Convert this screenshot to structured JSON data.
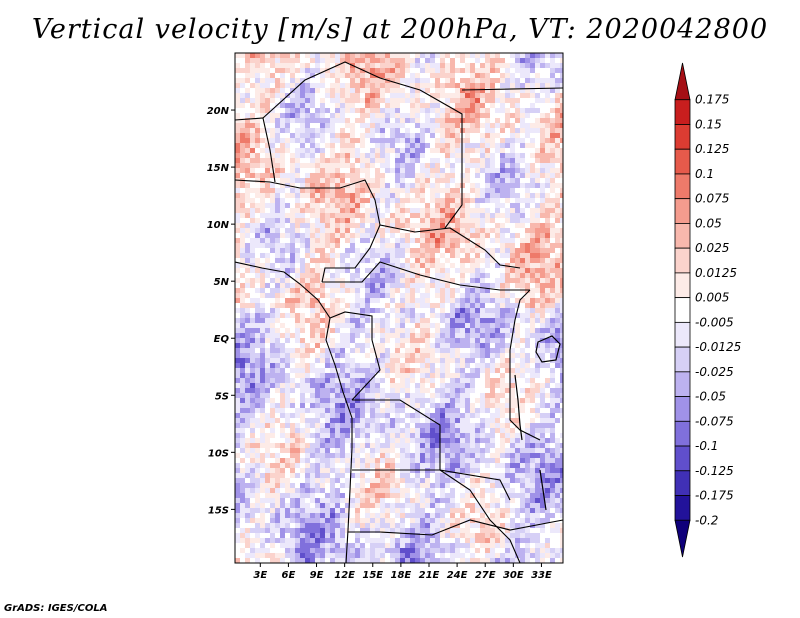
{
  "chart_data": {
    "type": "heatmap",
    "title": "Vertical velocity [m/s] at 200hPa, VT: 2020042800",
    "variable": "Vertical velocity",
    "units": "m/s",
    "pressure_level": "200hPa",
    "valid_time": "2020042800",
    "x_ticks": [
      "3E",
      "6E",
      "9E",
      "12E",
      "15E",
      "18E",
      "21E",
      "24E",
      "27E",
      "30E",
      "33E"
    ],
    "x_tick_values": [
      3,
      6,
      9,
      12,
      15,
      18,
      21,
      24,
      27,
      30,
      33
    ],
    "y_ticks": [
      "20N",
      "15N",
      "10N",
      "5N",
      "EQ",
      "5S",
      "10S",
      "15S"
    ],
    "y_tick_values": [
      20,
      15,
      10,
      5,
      0,
      -5,
      -10,
      -15
    ],
    "xlim": [
      0.3,
      35.3
    ],
    "ylim": [
      -19.7,
      25
    ],
    "colorbar": {
      "levels": [
        "0.175",
        "0.15",
        "0.125",
        "0.1",
        "0.075",
        "0.05",
        "0.025",
        "0.0125",
        "0.005",
        "-0.005",
        "-0.0125",
        "-0.025",
        "-0.05",
        "-0.075",
        "-0.1",
        "-0.125",
        "-0.175",
        "-0.2"
      ],
      "colors": [
        "#a50f15",
        "#c81e1e",
        "#dc3c32",
        "#e65a4b",
        "#ee7a6a",
        "#f59c8e",
        "#f8b8ad",
        "#fbd3cc",
        "#fdebe7",
        "#ffffff",
        "#ece8fb",
        "#d6d0f6",
        "#bdb2f0",
        "#a092e8",
        "#8070dc",
        "#604fcc",
        "#4030b6",
        "#22129a",
        "#0f007a"
      ]
    },
    "features": [
      "coastlines",
      "country borders",
      "lakes"
    ]
  },
  "footer": {
    "credit": "GrADS: IGES/COLA"
  }
}
